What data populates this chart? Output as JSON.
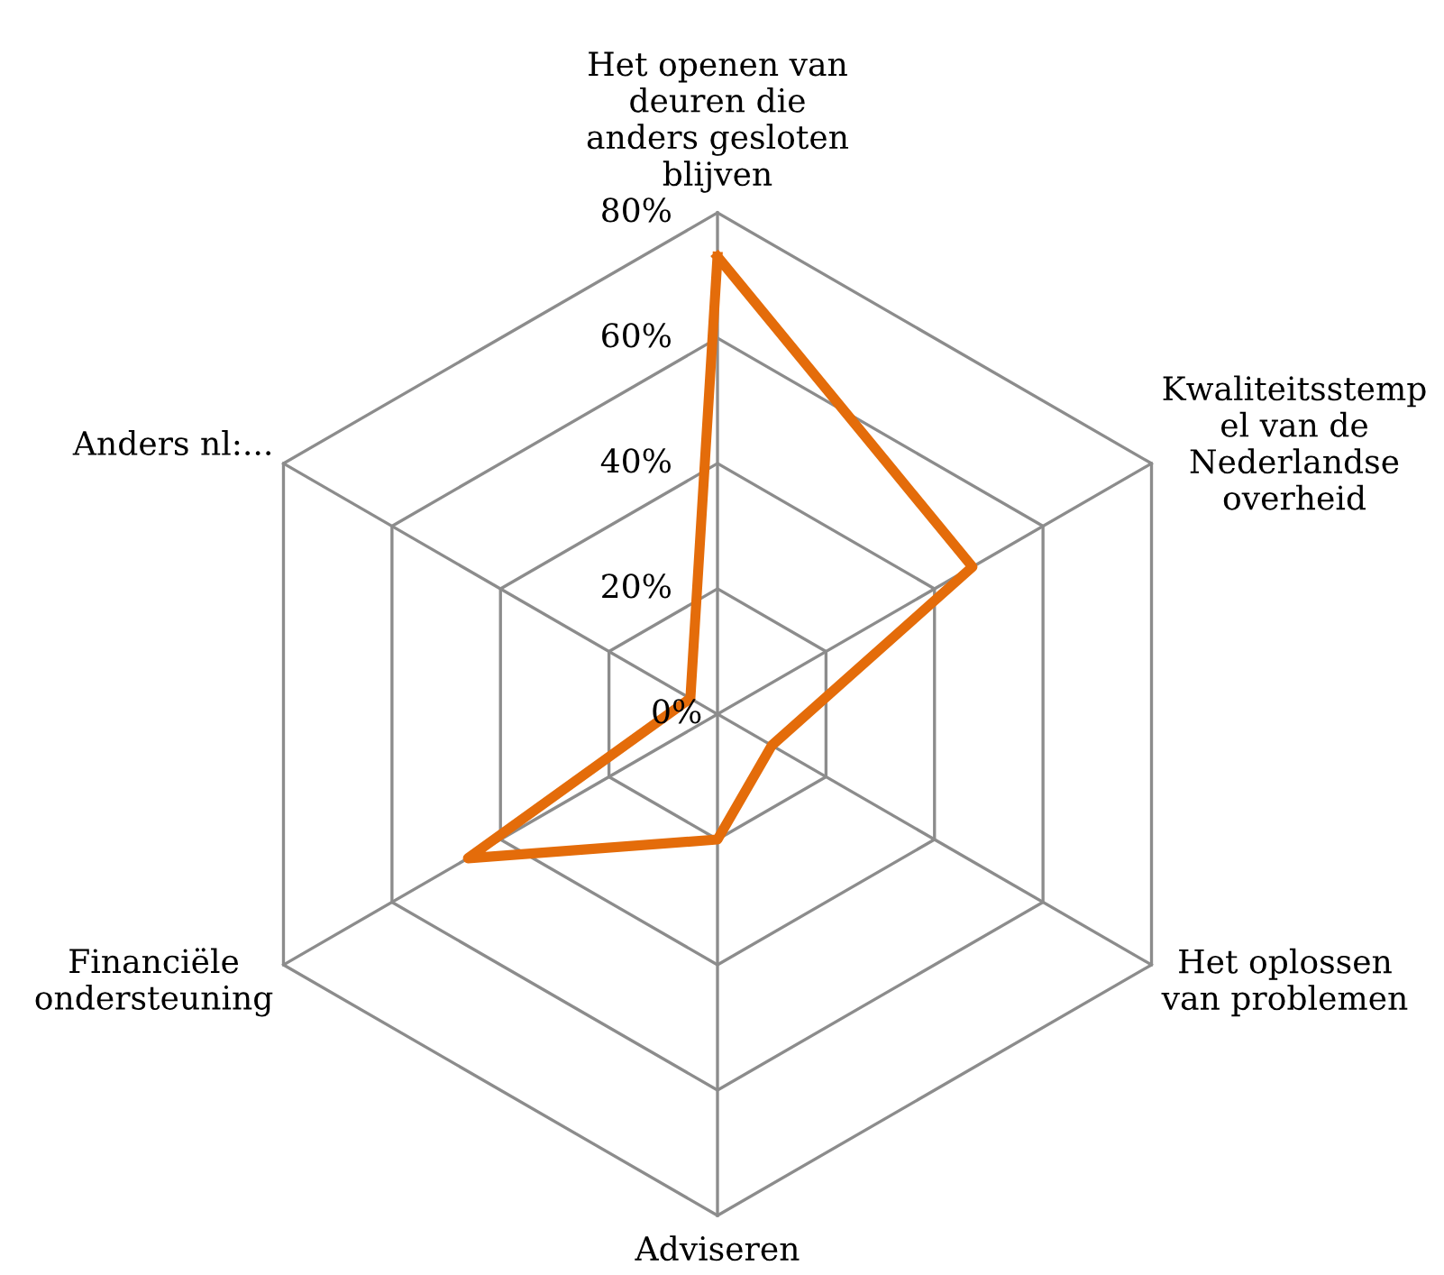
{
  "chart_data": {
    "type": "radar",
    "categories": [
      "Het openen van\ndeuren die\nanders gesloten\nblijven",
      "Kwaliteitsstemp\nel van de\nNederlandse\noverheid",
      "Het oplossen\nvan problemen",
      "Adviseren",
      "Financiële\nondersteuning",
      "Anders nl:..."
    ],
    "series": [
      {
        "color": "#e46c0a",
        "values": [
          73,
          47,
          10,
          20,
          46,
          5
        ]
      }
    ],
    "ylim": [
      0,
      80
    ],
    "yticks": [
      {
        "value": 0,
        "label": "0%"
      },
      {
        "value": 20,
        "label": "20%"
      },
      {
        "value": 40,
        "label": "40%"
      },
      {
        "value": 60,
        "label": "60%"
      },
      {
        "value": 80,
        "label": "80%"
      }
    ],
    "grid": true,
    "marker": "none",
    "line_style": "solid"
  }
}
